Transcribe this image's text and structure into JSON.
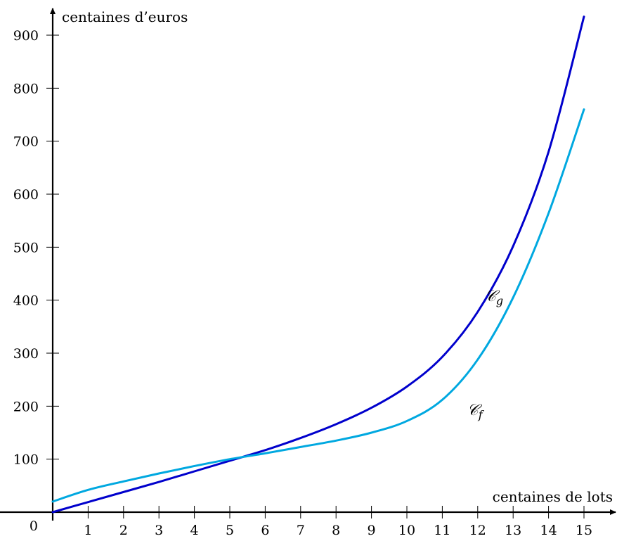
{
  "chart_data": {
    "type": "line",
    "xlabel": "centaines de lots",
    "ylabel": "centaines d’euros",
    "origin_label": "0",
    "xlim": [
      0,
      15
    ],
    "ylim": [
      0,
      900
    ],
    "x_ticks": [
      1,
      2,
      3,
      4,
      5,
      6,
      7,
      8,
      9,
      10,
      11,
      12,
      13,
      14,
      15
    ],
    "y_ticks": [
      100,
      200,
      300,
      400,
      500,
      600,
      700,
      800,
      900
    ],
    "grid": false,
    "series": [
      {
        "name": "𝒞g",
        "label_main": "𝒞",
        "label_sub": "g",
        "color": "#0000cc",
        "x": [
          0,
          1,
          2,
          3,
          4,
          5,
          6,
          7,
          8,
          9,
          10,
          11,
          12,
          13,
          14,
          15
        ],
        "y": [
          0,
          19,
          38,
          57,
          77,
          97,
          117,
          140,
          166,
          197,
          237,
          293,
          378,
          502,
          680,
          935
        ]
      },
      {
        "name": "𝒞f",
        "label_main": "𝒞",
        "label_sub": "f",
        "color": "#00a8e0",
        "x": [
          0,
          1,
          2,
          3,
          4,
          5,
          6,
          7,
          8,
          9,
          10,
          11,
          12,
          13,
          14,
          15
        ],
        "y": [
          20,
          42,
          58,
          73,
          87,
          100,
          111,
          123,
          135,
          150,
          172,
          212,
          288,
          405,
          564,
          760
        ]
      }
    ]
  }
}
